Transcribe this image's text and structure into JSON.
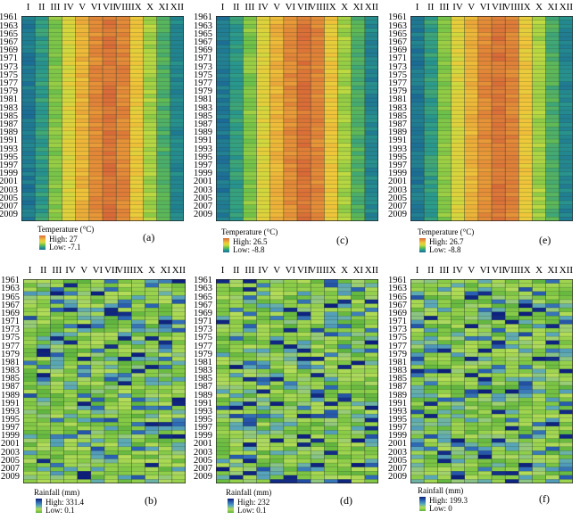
{
  "months": [
    "I",
    "II",
    "III",
    "IV",
    "V",
    "VI",
    "VII",
    "VIII",
    "IX",
    "X",
    "XI",
    "XII"
  ],
  "years": [
    "1961",
    "1963",
    "1965",
    "1967",
    "1969",
    "1971",
    "1973",
    "1975",
    "1977",
    "1979",
    "1981",
    "1983",
    "1985",
    "1987",
    "1989",
    "1991",
    "1993",
    "1995",
    "1997",
    "1999",
    "2001",
    "2003",
    "2005",
    "2007",
    "2009"
  ],
  "colors": {
    "temp_scale": [
      "#1a6b96",
      "#2a9a8c",
      "#6cc04a",
      "#c8dc40",
      "#f0c83a",
      "#e89a38",
      "#d86a38"
    ],
    "rain_scale": [
      "#5cb33e",
      "#8acc48",
      "#b4dc58",
      "#5aa7b8",
      "#2c66b6",
      "#0c1e7a"
    ]
  },
  "panels": [
    {
      "id": "a",
      "label": "(a)",
      "legend_title": "Temperature (°C)",
      "high": "High: 27",
      "low": "Low: -7.1",
      "kind": "temperature"
    },
    {
      "id": "c",
      "label": "(c)",
      "legend_title": "Temperature (°C)",
      "high": "High: 26.5",
      "low": "Low: -8.8",
      "kind": "temperature"
    },
    {
      "id": "e",
      "label": "(e)",
      "legend_title": "Temperature (°C)",
      "high": "High: 26.7",
      "low": "Low: -8.8",
      "kind": "temperature"
    },
    {
      "id": "b",
      "label": "(b)",
      "legend_title": "Rainfall (mm)",
      "high": "High: 331.4",
      "low": "Low: 0.1",
      "kind": "rainfall"
    },
    {
      "id": "d",
      "label": "(d)",
      "legend_title": "Rainfall (mm)",
      "high": "High: 232",
      "low": "Low: 0.1",
      "kind": "rainfall"
    },
    {
      "id": "f",
      "label": "(f)",
      "legend_title": "Rainfall (mm)",
      "high": "High: 199.3",
      "low": "Low: 0",
      "kind": "rainfall"
    }
  ],
  "chart_data": [
    {
      "type": "heatmap",
      "panel": "(a)",
      "x": "months I–XII",
      "y": "years 1961–2010",
      "value": "Temperature (°C)",
      "range": [
        -7.1,
        27
      ]
    },
    {
      "type": "heatmap",
      "panel": "(c)",
      "x": "months I–XII",
      "y": "years 1961–2010",
      "value": "Temperature (°C)",
      "range": [
        -8.8,
        26.5
      ]
    },
    {
      "type": "heatmap",
      "panel": "(e)",
      "x": "months I–XII",
      "y": "years 1961–2010",
      "value": "Temperature (°C)",
      "range": [
        -8.8,
        26.7
      ]
    },
    {
      "type": "heatmap",
      "panel": "(b)",
      "x": "months I–XII",
      "y": "years 1961–2010",
      "value": "Rainfall (mm)",
      "range": [
        0.1,
        331.4
      ]
    },
    {
      "type": "heatmap",
      "panel": "(d)",
      "x": "months I–XII",
      "y": "years 1961–2010",
      "value": "Rainfall (mm)",
      "range": [
        0.1,
        232
      ]
    },
    {
      "type": "heatmap",
      "panel": "(f)",
      "x": "months I–XII",
      "y": "years 1961–2010",
      "value": "Rainfall (mm)",
      "range": [
        0,
        199.3
      ]
    }
  ]
}
